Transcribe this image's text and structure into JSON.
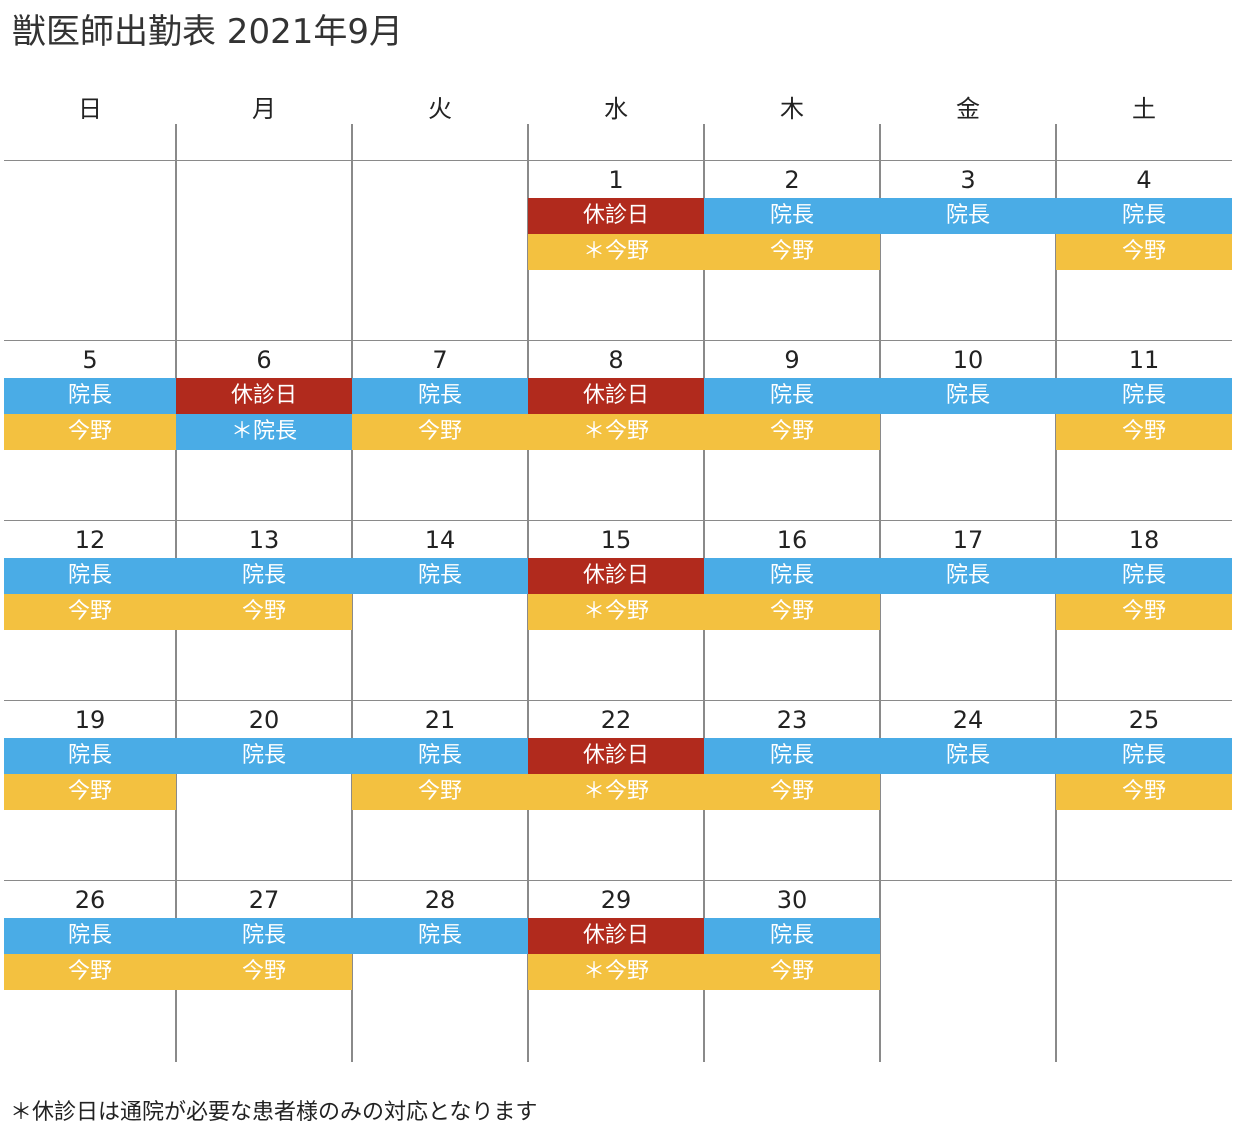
{
  "title": "獣医師出勤表 2021年9月",
  "weekdays": [
    "日",
    "月",
    "火",
    "水",
    "木",
    "金",
    "土"
  ],
  "colors": {
    "blue": "#4aace6",
    "yellow": "#f3c140",
    "red": "#b12a1d",
    "grid": "#8a8a8a"
  },
  "weeks": [
    [
      null,
      null,
      null,
      {
        "day": "1",
        "shifts": [
          {
            "label": "休診日",
            "color": "red"
          },
          {
            "label": "＊今野",
            "color": "yellow"
          }
        ]
      },
      {
        "day": "2",
        "shifts": [
          {
            "label": "院長",
            "color": "blue"
          },
          {
            "label": "今野",
            "color": "yellow"
          }
        ]
      },
      {
        "day": "3",
        "shifts": [
          {
            "label": "院長",
            "color": "blue"
          }
        ]
      },
      {
        "day": "4",
        "shifts": [
          {
            "label": "院長",
            "color": "blue"
          },
          {
            "label": "今野",
            "color": "yellow"
          }
        ]
      }
    ],
    [
      {
        "day": "5",
        "shifts": [
          {
            "label": "院長",
            "color": "blue"
          },
          {
            "label": "今野",
            "color": "yellow"
          }
        ]
      },
      {
        "day": "6",
        "shifts": [
          {
            "label": "休診日",
            "color": "red"
          },
          {
            "label": "＊院長",
            "color": "blue"
          }
        ]
      },
      {
        "day": "7",
        "shifts": [
          {
            "label": "院長",
            "color": "blue"
          },
          {
            "label": "今野",
            "color": "yellow"
          }
        ]
      },
      {
        "day": "8",
        "shifts": [
          {
            "label": "休診日",
            "color": "red"
          },
          {
            "label": "＊今野",
            "color": "yellow"
          }
        ]
      },
      {
        "day": "9",
        "shifts": [
          {
            "label": "院長",
            "color": "blue"
          },
          {
            "label": "今野",
            "color": "yellow"
          }
        ]
      },
      {
        "day": "10",
        "shifts": [
          {
            "label": "院長",
            "color": "blue"
          }
        ]
      },
      {
        "day": "11",
        "shifts": [
          {
            "label": "院長",
            "color": "blue"
          },
          {
            "label": "今野",
            "color": "yellow"
          }
        ]
      }
    ],
    [
      {
        "day": "12",
        "shifts": [
          {
            "label": "院長",
            "color": "blue"
          },
          {
            "label": "今野",
            "color": "yellow"
          }
        ]
      },
      {
        "day": "13",
        "shifts": [
          {
            "label": "院長",
            "color": "blue"
          },
          {
            "label": "今野",
            "color": "yellow"
          }
        ]
      },
      {
        "day": "14",
        "shifts": [
          {
            "label": "院長",
            "color": "blue"
          }
        ]
      },
      {
        "day": "15",
        "shifts": [
          {
            "label": "休診日",
            "color": "red"
          },
          {
            "label": "＊今野",
            "color": "yellow"
          }
        ]
      },
      {
        "day": "16",
        "shifts": [
          {
            "label": "院長",
            "color": "blue"
          },
          {
            "label": "今野",
            "color": "yellow"
          }
        ]
      },
      {
        "day": "17",
        "shifts": [
          {
            "label": "院長",
            "color": "blue"
          }
        ]
      },
      {
        "day": "18",
        "shifts": [
          {
            "label": "院長",
            "color": "blue"
          },
          {
            "label": "今野",
            "color": "yellow"
          }
        ]
      }
    ],
    [
      {
        "day": "19",
        "shifts": [
          {
            "label": "院長",
            "color": "blue"
          },
          {
            "label": "今野",
            "color": "yellow"
          }
        ]
      },
      {
        "day": "20",
        "shifts": [
          {
            "label": "院長",
            "color": "blue"
          }
        ]
      },
      {
        "day": "21",
        "shifts": [
          {
            "label": "院長",
            "color": "blue"
          },
          {
            "label": "今野",
            "color": "yellow"
          }
        ]
      },
      {
        "day": "22",
        "shifts": [
          {
            "label": "休診日",
            "color": "red"
          },
          {
            "label": "＊今野",
            "color": "yellow"
          }
        ]
      },
      {
        "day": "23",
        "shifts": [
          {
            "label": "院長",
            "color": "blue"
          },
          {
            "label": "今野",
            "color": "yellow"
          }
        ]
      },
      {
        "day": "24",
        "shifts": [
          {
            "label": "院長",
            "color": "blue"
          }
        ]
      },
      {
        "day": "25",
        "shifts": [
          {
            "label": "院長",
            "color": "blue"
          },
          {
            "label": "今野",
            "color": "yellow"
          }
        ]
      }
    ],
    [
      {
        "day": "26",
        "shifts": [
          {
            "label": "院長",
            "color": "blue"
          },
          {
            "label": "今野",
            "color": "yellow"
          }
        ]
      },
      {
        "day": "27",
        "shifts": [
          {
            "label": "院長",
            "color": "blue"
          },
          {
            "label": "今野",
            "color": "yellow"
          }
        ]
      },
      {
        "day": "28",
        "shifts": [
          {
            "label": "院長",
            "color": "blue"
          }
        ]
      },
      {
        "day": "29",
        "shifts": [
          {
            "label": "休診日",
            "color": "red"
          },
          {
            "label": "＊今野",
            "color": "yellow"
          }
        ]
      },
      {
        "day": "30",
        "shifts": [
          {
            "label": "院長",
            "color": "blue"
          },
          {
            "label": "今野",
            "color": "yellow"
          }
        ]
      },
      null,
      null
    ]
  ],
  "footnote": "＊休診日は通院が必要な患者様のみの対応となります"
}
